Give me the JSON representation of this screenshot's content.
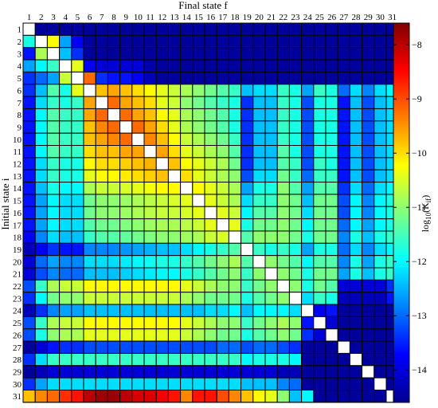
{
  "chart_data": {
    "type": "heatmap",
    "title": "",
    "xlabel": "Final state f",
    "ylabel": "Initial state i",
    "colorbar_label": "log10(Kif)",
    "colorbar_ticks": [
      -8,
      -9,
      -10,
      -11,
      -12,
      -13,
      -14
    ],
    "colorbar_range": [
      -14.6,
      -7.6
    ],
    "colormap": "jet",
    "x_ticks": [
      "1",
      "2",
      "3",
      "4",
      "5",
      "6",
      "7",
      "8",
      "9",
      "10",
      "11",
      "12",
      "13",
      "14",
      "15",
      "16",
      "17",
      "18",
      "19",
      "20",
      "21",
      "22",
      "23",
      "24",
      "25",
      "26",
      "27",
      "28",
      "29",
      "30",
      "31"
    ],
    "y_ticks": [
      "1",
      "2",
      "3",
      "4",
      "5",
      "6",
      "7",
      "8",
      "9",
      "10",
      "11",
      "12",
      "13",
      "14",
      "15",
      "16",
      "17",
      "18",
      "19",
      "20",
      "21",
      "22",
      "23",
      "24",
      "25",
      "26",
      "27",
      "28",
      "29",
      "30",
      "31"
    ],
    "diagonal": "blank",
    "matrix": [
      [
        null,
        -14.4,
        -14.4,
        -14.4,
        -14.4,
        -14.4,
        -14.4,
        -14.4,
        -14.4,
        -14.4,
        -14.4,
        -14.4,
        -14.4,
        -14.4,
        -14.4,
        -14.4,
        -14.4,
        -14.4,
        -14.4,
        -14.4,
        -14.4,
        -14.4,
        -14.4,
        -14.4,
        -14.4,
        -14.4,
        -14.4,
        -14.4,
        -14.4,
        -14.4,
        -14.4
      ],
      [
        -11.8,
        null,
        -10.2,
        -12.6,
        -13.8,
        -14.4,
        -14.4,
        -14.4,
        -14.4,
        -14.4,
        -14.4,
        -14.4,
        -14.4,
        -14.4,
        -14.4,
        -14.4,
        -14.4,
        -14.4,
        -14.4,
        -14.4,
        -14.4,
        -14.4,
        -14.4,
        -14.4,
        -14.4,
        -14.4,
        -14.4,
        -14.4,
        -14.4,
        -14.4,
        -14.4
      ],
      [
        -13.6,
        -10.8,
        null,
        -12.4,
        -13.4,
        -14.4,
        -14.4,
        -14.4,
        -14.4,
        -14.4,
        -14.4,
        -14.4,
        -14.4,
        -14.4,
        -14.4,
        -14.4,
        -14.4,
        -14.4,
        -14.4,
        -14.4,
        -14.4,
        -14.4,
        -14.4,
        -14.4,
        -14.4,
        -14.4,
        -14.4,
        -14.4,
        -14.4,
        -14.4,
        -14.4
      ],
      [
        -12.6,
        -12.0,
        -11.6,
        null,
        -10.4,
        -13.8,
        -14.0,
        -14.0,
        -14.0,
        -14.0,
        -14.3,
        -14.4,
        -14.4,
        -14.4,
        -14.4,
        -14.4,
        -14.4,
        -14.4,
        -14.4,
        -14.4,
        -14.4,
        -14.4,
        -14.4,
        -14.4,
        -14.4,
        -14.4,
        -14.4,
        -14.4,
        -14.4,
        -14.4,
        -14.4
      ],
      [
        -13.4,
        -13.0,
        -12.6,
        -10.6,
        null,
        -9.2,
        -13.4,
        -13.6,
        -13.6,
        -13.8,
        -14.2,
        -14.4,
        -14.4,
        -14.4,
        -14.4,
        -14.4,
        -14.4,
        -14.4,
        -14.4,
        -14.4,
        -14.4,
        -14.4,
        -14.4,
        -14.4,
        -14.4,
        -14.4,
        -14.4,
        -14.4,
        -14.4,
        -14.4,
        -14.4
      ],
      [
        -13.4,
        -12.4,
        -11.4,
        -11.8,
        -10.4,
        null,
        -9.8,
        -9.6,
        -9.8,
        -10.0,
        -10.2,
        -10.4,
        -10.6,
        -10.8,
        -11.0,
        -11.2,
        -11.4,
        -11.6,
        -12.4,
        -12.2,
        -12.2,
        -11.6,
        -11.8,
        -12.6,
        -11.6,
        -11.8,
        -13.0,
        -12.2,
        -12.8,
        -12.2,
        -12.0
      ],
      [
        -13.6,
        -12.2,
        -11.6,
        -11.8,
        -11.6,
        -9.6,
        null,
        -9.2,
        -9.6,
        -9.8,
        -10.0,
        -10.4,
        -10.6,
        -11.0,
        -11.2,
        -11.4,
        -11.6,
        -11.8,
        -13.4,
        -12.4,
        -12.4,
        -11.6,
        -11.8,
        -13.2,
        -11.8,
        -11.8,
        -13.6,
        -12.4,
        -13.2,
        -12.4,
        -12.2
      ],
      [
        -13.6,
        -12.0,
        -11.4,
        -11.6,
        -11.6,
        -9.6,
        -9.2,
        null,
        -9.2,
        -9.6,
        -9.8,
        -10.2,
        -10.4,
        -10.8,
        -11.0,
        -11.2,
        -11.4,
        -11.8,
        -13.4,
        -12.4,
        -12.4,
        -11.6,
        -11.8,
        -13.2,
        -11.8,
        -11.8,
        -13.6,
        -12.4,
        -13.2,
        -12.4,
        -12.2
      ],
      [
        -13.6,
        -12.0,
        -11.4,
        -11.6,
        -11.6,
        -9.8,
        -9.4,
        -9.2,
        null,
        -9.2,
        -9.6,
        -10.0,
        -10.4,
        -10.8,
        -11.0,
        -11.2,
        -11.4,
        -11.8,
        -13.4,
        -12.4,
        -12.4,
        -11.6,
        -11.8,
        -13.2,
        -11.8,
        -11.8,
        -13.6,
        -12.4,
        -13.2,
        -12.4,
        -12.2
      ],
      [
        -13.6,
        -12.0,
        -11.4,
        -11.6,
        -11.6,
        -9.8,
        -9.6,
        -9.4,
        -9.2,
        null,
        -9.4,
        -9.8,
        -10.2,
        -10.6,
        -10.8,
        -11.0,
        -11.2,
        -11.6,
        -13.4,
        -12.4,
        -12.4,
        -11.6,
        -11.8,
        -13.2,
        -11.8,
        -11.8,
        -13.6,
        -12.4,
        -13.2,
        -12.4,
        -12.2
      ],
      [
        -13.6,
        -12.0,
        -11.4,
        -11.6,
        -11.6,
        -10.0,
        -9.8,
        -9.8,
        -9.6,
        -9.6,
        null,
        -9.6,
        -10.0,
        -10.4,
        -10.6,
        -10.8,
        -11.0,
        -11.4,
        -13.4,
        -12.4,
        -12.4,
        -11.4,
        -11.8,
        -13.2,
        -11.8,
        -11.8,
        -13.6,
        -12.4,
        -13.2,
        -12.4,
        -12.2
      ],
      [
        -13.6,
        -12.2,
        -11.6,
        -11.8,
        -11.8,
        -10.2,
        -10.0,
        -10.0,
        -9.9,
        -9.8,
        -9.7,
        null,
        -9.8,
        -10.2,
        -10.4,
        -10.6,
        -10.8,
        -11.2,
        -13.4,
        -12.4,
        -12.4,
        -11.4,
        -11.6,
        -13.2,
        -11.6,
        -11.8,
        -13.6,
        -12.4,
        -13.2,
        -12.4,
        -12.2
      ],
      [
        -13.6,
        -12.2,
        -11.6,
        -11.8,
        -11.8,
        -10.4,
        -10.2,
        -10.2,
        -10.1,
        -10.0,
        -9.9,
        -9.8,
        null,
        -10.0,
        -10.4,
        -10.6,
        -10.8,
        -11.0,
        -13.2,
        -12.2,
        -12.2,
        -11.2,
        -11.6,
        -13.0,
        -11.6,
        -11.6,
        -13.6,
        -12.4,
        -13.2,
        -12.4,
        -12.2
      ],
      [
        -13.6,
        -12.4,
        -11.8,
        -12.0,
        -12.0,
        -10.8,
        -10.6,
        -10.6,
        -10.5,
        -10.4,
        -10.3,
        -10.2,
        -10.2,
        null,
        -10.2,
        -10.4,
        -10.6,
        -10.8,
        -12.6,
        -11.8,
        -11.8,
        -11.0,
        -11.4,
        -12.6,
        -11.4,
        -11.4,
        -13.4,
        -12.2,
        -13.0,
        -12.2,
        -12.0
      ],
      [
        -13.6,
        -12.6,
        -12.0,
        -12.2,
        -12.2,
        -11.2,
        -11.0,
        -11.0,
        -10.9,
        -10.8,
        -10.7,
        -10.6,
        -10.5,
        -10.4,
        null,
        -10.4,
        -10.6,
        -10.8,
        -12.2,
        -11.6,
        -11.6,
        -11.0,
        -11.2,
        -12.4,
        -11.2,
        -11.2,
        -13.2,
        -12.0,
        -12.8,
        -12.0,
        -11.8
      ],
      [
        -13.6,
        -12.6,
        -12.0,
        -12.2,
        -12.2,
        -11.2,
        -11.0,
        -11.0,
        -10.9,
        -10.8,
        -10.7,
        -10.6,
        -10.6,
        -10.5,
        -10.4,
        null,
        -10.4,
        -10.6,
        -12.0,
        -11.4,
        -11.4,
        -11.0,
        -11.2,
        -12.2,
        -11.2,
        -11.2,
        -13.2,
        -12.0,
        -12.8,
        -12.0,
        -11.8
      ],
      [
        -13.6,
        -12.6,
        -12.0,
        -12.2,
        -12.2,
        -11.4,
        -11.2,
        -11.2,
        -11.1,
        -11.0,
        -10.9,
        -10.8,
        -10.8,
        -10.7,
        -10.6,
        -10.4,
        null,
        -10.4,
        -11.8,
        -11.2,
        -11.2,
        -11.0,
        -11.2,
        -12.0,
        -11.2,
        -11.2,
        -13.0,
        -12.0,
        -12.6,
        -12.0,
        -11.8
      ],
      [
        -13.8,
        -12.8,
        -12.2,
        -12.4,
        -12.4,
        -11.6,
        -11.4,
        -11.4,
        -11.3,
        -11.2,
        -11.1,
        -11.0,
        -11.0,
        -10.9,
        -10.8,
        -10.6,
        -10.5,
        null,
        -11.4,
        -11.0,
        -11.0,
        -11.0,
        -11.2,
        -11.8,
        -11.2,
        -11.2,
        -12.8,
        -11.8,
        -12.4,
        -11.8,
        -11.6
      ],
      [
        -14.2,
        -13.8,
        -13.4,
        -13.6,
        -13.6,
        -12.8,
        -12.8,
        -12.8,
        -12.7,
        -12.6,
        -12.5,
        -12.4,
        -12.4,
        -12.2,
        -12.0,
        -11.8,
        -11.6,
        -11.4,
        null,
        -11.6,
        -11.8,
        -11.6,
        -11.8,
        -12.6,
        -11.8,
        -11.8,
        -13.0,
        -12.2,
        -12.8,
        -12.2,
        -12.0
      ],
      [
        -14.0,
        -13.0,
        -12.6,
        -12.8,
        -12.8,
        -12.2,
        -12.2,
        -12.2,
        -12.1,
        -12.0,
        -11.9,
        -11.8,
        -11.8,
        -11.6,
        -11.4,
        -11.2,
        -11.0,
        -10.8,
        -11.4,
        null,
        -11.0,
        -11.2,
        -11.4,
        -12.0,
        -11.4,
        -11.4,
        -12.8,
        -11.8,
        -12.6,
        -11.8,
        -11.6
      ],
      [
        -14.0,
        -13.2,
        -12.8,
        -13.0,
        -13.0,
        -12.4,
        -12.4,
        -12.4,
        -12.3,
        -12.2,
        -12.1,
        -12.0,
        -12.0,
        -11.8,
        -11.6,
        -11.4,
        -11.2,
        -11.0,
        -11.6,
        -11.0,
        null,
        -11.0,
        -11.2,
        -11.8,
        -11.2,
        -11.2,
        -12.6,
        -11.8,
        -12.4,
        -11.8,
        -11.6
      ],
      [
        -13.2,
        -11.6,
        -10.8,
        -10.6,
        -10.6,
        -10.2,
        -10.2,
        -10.2,
        -10.2,
        -10.2,
        -10.2,
        -10.2,
        -10.2,
        -10.4,
        -10.6,
        -10.8,
        -11.0,
        -11.0,
        -11.6,
        -11.2,
        -11.0,
        null,
        -11.0,
        -11.8,
        -11.2,
        -11.4,
        -14.0,
        -14.0,
        -14.0,
        -14.0,
        -13.4
      ],
      [
        -13.4,
        -12.0,
        -11.2,
        -11.0,
        -11.0,
        -10.6,
        -10.6,
        -10.6,
        -10.6,
        -10.6,
        -10.6,
        -10.6,
        -10.6,
        -10.8,
        -11.0,
        -11.2,
        -11.2,
        -11.2,
        -11.8,
        -11.4,
        -11.2,
        -11.0,
        null,
        -12.2,
        -11.6,
        -11.8,
        -14.2,
        -14.2,
        -14.2,
        -14.2,
        -13.6
      ],
      [
        -14.2,
        -13.4,
        -12.8,
        -12.6,
        -12.6,
        -12.4,
        -12.4,
        -12.4,
        -12.4,
        -12.4,
        -12.4,
        -12.4,
        -12.4,
        -12.4,
        -12.4,
        -12.2,
        -12.2,
        -12.0,
        -12.4,
        -12.0,
        -12.0,
        -12.0,
        -12.2,
        null,
        -13.8,
        -13.6,
        -14.4,
        -14.4,
        -14.4,
        -14.4,
        -14.4
      ],
      [
        -13.2,
        -11.6,
        -10.8,
        -10.6,
        -10.6,
        -10.2,
        -10.2,
        -10.2,
        -10.2,
        -10.2,
        -10.2,
        -10.2,
        -10.2,
        -10.4,
        -10.6,
        -10.8,
        -11.0,
        -11.0,
        -11.6,
        -11.2,
        -11.0,
        -10.8,
        -11.0,
        -13.6,
        null,
        -14.0,
        -14.4,
        -14.4,
        -14.4,
        -14.4,
        -14.4
      ],
      [
        -13.2,
        -11.8,
        -11.0,
        -10.8,
        -10.8,
        -10.4,
        -10.4,
        -10.4,
        -10.4,
        -10.4,
        -10.4,
        -10.4,
        -10.4,
        -10.6,
        -10.8,
        -11.0,
        -11.2,
        -11.2,
        -11.8,
        -11.4,
        -11.2,
        -11.0,
        -11.2,
        -13.4,
        -14.0,
        null,
        -14.4,
        -14.4,
        -14.4,
        -14.4,
        -14.4
      ],
      [
        -14.4,
        -14.0,
        -13.6,
        -13.4,
        -13.4,
        -13.2,
        -13.2,
        -13.2,
        -13.2,
        -13.2,
        -13.2,
        -13.2,
        -13.2,
        -13.2,
        -13.2,
        -13.2,
        -13.0,
        -13.0,
        -13.2,
        -13.0,
        -13.0,
        -13.2,
        -13.4,
        -14.4,
        -14.4,
        -14.4,
        null,
        -14.4,
        -14.4,
        -14.4,
        -14.4
      ],
      [
        -13.4,
        -12.2,
        -11.6,
        -11.6,
        -11.6,
        -11.6,
        -11.6,
        -11.6,
        -11.6,
        -11.6,
        -11.6,
        -11.6,
        -11.6,
        -11.6,
        -11.6,
        -11.6,
        -11.6,
        -11.6,
        -12.0,
        -11.8,
        -11.8,
        -11.8,
        -12.0,
        -14.4,
        -14.4,
        -14.4,
        -14.4,
        null,
        -14.4,
        -14.4,
        -14.4
      ],
      [
        -14.4,
        -14.2,
        -14.0,
        -14.0,
        -14.0,
        -14.0,
        -14.0,
        -14.0,
        -14.0,
        -14.0,
        -14.0,
        -14.0,
        -14.0,
        -14.0,
        -14.0,
        -14.0,
        -14.0,
        -14.0,
        -14.0,
        -14.0,
        -14.0,
        -14.2,
        -14.2,
        -14.4,
        -14.4,
        -14.4,
        -14.4,
        -14.4,
        null,
        -14.4,
        -14.4
      ],
      [
        -13.4,
        -12.6,
        -12.2,
        -12.2,
        -12.2,
        -12.2,
        -12.2,
        -12.2,
        -12.2,
        -12.2,
        -12.2,
        -12.2,
        -12.2,
        -12.2,
        -12.2,
        -12.2,
        -12.2,
        -12.2,
        -12.4,
        -12.4,
        -12.4,
        -12.8,
        -13.0,
        -14.4,
        -14.4,
        -14.4,
        -14.4,
        -14.4,
        -14.4,
        null,
        -14.4
      ],
      [
        -9.8,
        -9.4,
        -9.2,
        -8.8,
        -8.6,
        -8.0,
        -7.8,
        -7.8,
        -8.0,
        -8.2,
        -8.2,
        -8.4,
        -8.6,
        -9.4,
        -8.6,
        -8.6,
        -9.0,
        -9.4,
        -9.8,
        -10.2,
        -10.4,
        -11.0,
        -12.4,
        -12.0,
        -14.4,
        -14.4,
        -14.4,
        -14.4,
        -14.4,
        -14.4,
        null
      ]
    ]
  }
}
